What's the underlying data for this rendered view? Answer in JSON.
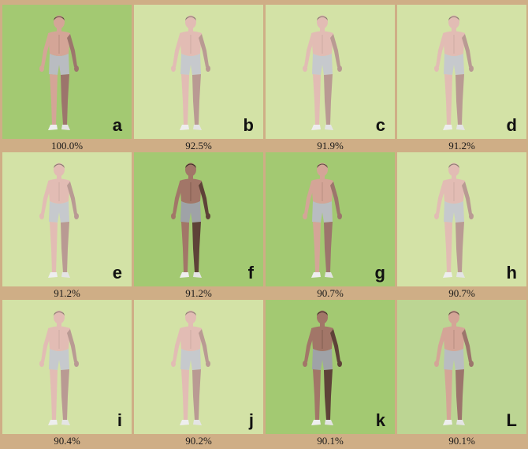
{
  "colors": {
    "frame": "#cfae86",
    "panel_light": "#d3e2a6",
    "panel_medium": "#bcd593",
    "panel_strong": "#a3c972"
  },
  "panels": [
    {
      "letter": "a",
      "score": "100.0%",
      "shade": "strong",
      "skin": "warm",
      "icon": "human-figure-icon"
    },
    {
      "letter": "b",
      "score": "92.5%",
      "shade": "light",
      "skin": "pale",
      "icon": "human-figure-icon"
    },
    {
      "letter": "c",
      "score": "91.9%",
      "shade": "light",
      "skin": "pale",
      "icon": "human-figure-icon"
    },
    {
      "letter": "d",
      "score": "91.2%",
      "shade": "light",
      "skin": "pale",
      "icon": "human-figure-icon"
    },
    {
      "letter": "e",
      "score": "91.2%",
      "shade": "light",
      "skin": "pale",
      "icon": "human-figure-icon"
    },
    {
      "letter": "f",
      "score": "91.2%",
      "shade": "strong",
      "skin": "dark",
      "icon": "human-figure-icon"
    },
    {
      "letter": "g",
      "score": "90.7%",
      "shade": "strong",
      "skin": "warm",
      "icon": "human-figure-icon"
    },
    {
      "letter": "h",
      "score": "90.7%",
      "shade": "light",
      "skin": "pale",
      "icon": "human-figure-icon"
    },
    {
      "letter": "i",
      "score": "90.4%",
      "shade": "light",
      "skin": "pale",
      "icon": "human-figure-icon"
    },
    {
      "letter": "j",
      "score": "90.2%",
      "shade": "light",
      "skin": "pale",
      "icon": "human-figure-icon"
    },
    {
      "letter": "k",
      "score": "90.1%",
      "shade": "strong",
      "skin": "dark",
      "icon": "human-figure-icon"
    },
    {
      "letter": "L",
      "score": "90.1%",
      "shade": "medium",
      "skin": "warm",
      "icon": "human-figure-icon"
    }
  ]
}
